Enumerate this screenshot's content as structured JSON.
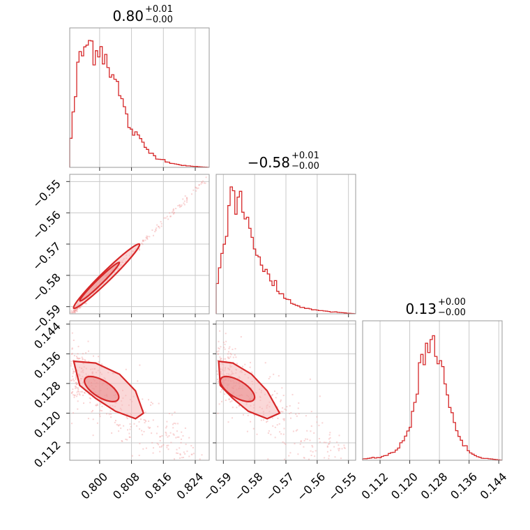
{
  "colors": {
    "accent": "#d62728",
    "grid": "#c8c8c8",
    "frame": "#999999"
  },
  "titles": [
    {
      "main": "0.80",
      "plus": "+0.01",
      "minus": "−0.00"
    },
    {
      "main": "−0.58",
      "plus": "+0.01",
      "minus": "−0.00"
    },
    {
      "main": "0.13",
      "plus": "+0.00",
      "minus": "−0.00"
    }
  ],
  "chart_data": {
    "type": "corner",
    "grid": true,
    "params": [
      {
        "range": [
          0.7925,
          0.8275
        ],
        "ticks": [
          0.8,
          0.808,
          0.816,
          0.824
        ],
        "tick_labels": [
          "0.800",
          "0.808",
          "0.816",
          "0.824"
        ]
      },
      {
        "range": [
          -0.5923,
          -0.5477
        ],
        "ticks": [
          -0.59,
          -0.58,
          -0.57,
          -0.56,
          -0.55
        ],
        "tick_labels": [
          "−0.59",
          "−0.58",
          "−0.57",
          "−0.56",
          "−0.55"
        ]
      },
      {
        "range": [
          0.1073,
          0.1449
        ],
        "ticks": [
          0.112,
          0.12,
          0.128,
          0.136,
          0.144
        ],
        "tick_labels": [
          "0.112",
          "0.120",
          "0.128",
          "0.136",
          "0.144"
        ]
      }
    ],
    "marginals": [
      {
        "x": [
          0.7925,
          0.795,
          0.7975,
          0.8,
          0.8025,
          0.805,
          0.8075,
          0.81,
          0.8125,
          0.815,
          0.8175,
          0.82,
          0.8225,
          0.825,
          0.8275
        ],
        "density": [
          0.15,
          0.88,
          0.98,
          0.95,
          0.82,
          0.58,
          0.32,
          0.22,
          0.12,
          0.07,
          0.04,
          0.02,
          0.01,
          0.005,
          0.0
        ]
      },
      {
        "x": [
          -0.5923,
          -0.59,
          -0.5875,
          -0.585,
          -0.5825,
          -0.58,
          -0.5775,
          -0.575,
          -0.5725,
          -0.57,
          -0.5675,
          -0.565,
          -0.5625,
          -0.56,
          -0.5575,
          -0.555,
          -0.5525,
          -0.55,
          -0.5477
        ],
        "density": [
          0.18,
          0.55,
          0.98,
          0.92,
          0.75,
          0.55,
          0.38,
          0.26,
          0.18,
          0.12,
          0.08,
          0.05,
          0.04,
          0.03,
          0.02,
          0.015,
          0.01,
          0.005,
          0.0
        ]
      },
      {
        "x": [
          0.1073,
          0.11,
          0.112,
          0.114,
          0.116,
          0.118,
          0.12,
          0.122,
          0.124,
          0.126,
          0.128,
          0.13,
          0.132,
          0.134,
          0.136,
          0.138,
          0.14,
          0.142,
          0.1449
        ],
        "density": [
          0.01,
          0.02,
          0.02,
          0.04,
          0.07,
          0.14,
          0.28,
          0.55,
          0.88,
          0.98,
          0.82,
          0.55,
          0.3,
          0.15,
          0.07,
          0.03,
          0.015,
          0.01,
          0.0
        ]
      }
    ]
  }
}
